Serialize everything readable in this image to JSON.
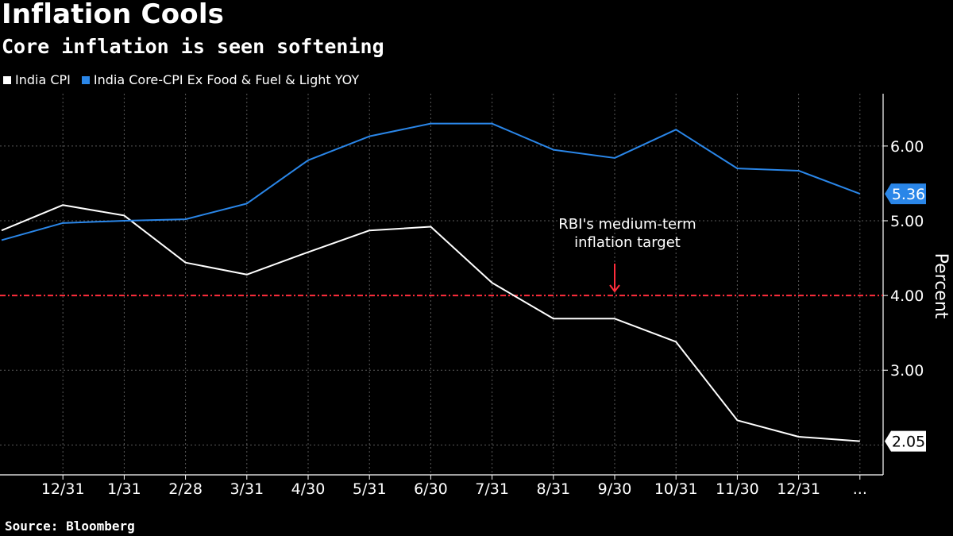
{
  "chart_data": {
    "type": "line",
    "title": "Inflation Cools",
    "subtitle": "Core inflation is seen softening",
    "ylabel": "Percent",
    "ylim": [
      1.6,
      6.7
    ],
    "yticks": [
      "3.00",
      "4.00",
      "5.00",
      "6.00"
    ],
    "categories": [
      "",
      "12/31",
      "1/31",
      "2/28",
      "3/31",
      "4/30",
      "5/31",
      "6/30",
      "7/31",
      "8/31",
      "9/30",
      "10/31",
      "11/30",
      "12/31",
      "..."
    ],
    "series": [
      {
        "name": "India CPI",
        "color": "#ffffff",
        "values": [
          4.87,
          5.21,
          5.07,
          4.44,
          4.28,
          4.58,
          4.87,
          4.92,
          4.17,
          3.69,
          3.69,
          3.38,
          2.33,
          2.11,
          2.05
        ],
        "last_label": "2.05"
      },
      {
        "name": "India Core-CPI Ex Food & Fuel & Light YOY",
        "color": "#2a86e8",
        "values": [
          4.74,
          4.97,
          5.0,
          5.02,
          5.23,
          5.81,
          6.13,
          6.3,
          6.3,
          5.95,
          5.84,
          6.22,
          5.7,
          5.67,
          5.36
        ],
        "last_label": "5.36"
      }
    ],
    "reference_line": {
      "value": 4.0,
      "color": "#ff2d3c"
    },
    "annotation": {
      "lines": [
        "RBI's medium-term",
        "inflation target"
      ],
      "arrow_color": "#ff2d3c"
    }
  },
  "source": "Source: Bloomberg"
}
